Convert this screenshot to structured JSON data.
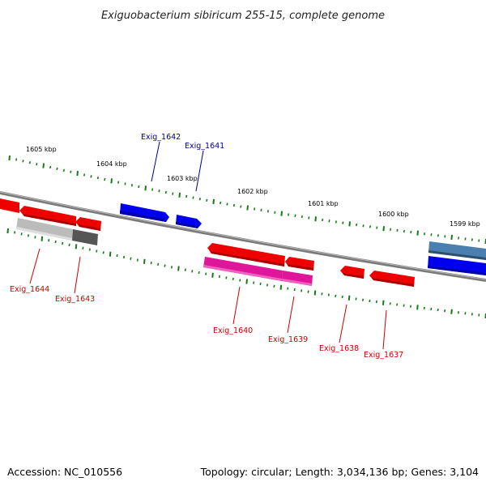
{
  "title": "Exiguobacterium sibiricum 255-15, complete genome",
  "footer": {
    "accession": "Accession: NC_010556",
    "summary": "Topology: circular; Length: 3,034,136 bp; Genes: 3,104"
  },
  "colors": {
    "forward_gene": "#0000ee",
    "forward_gene_alt": "#4a7fb0",
    "reverse_gene": "#ee0000",
    "pseudo_gene": "#bbbbbb",
    "pseudo_gene_dark": "#555555",
    "rna_gene": "#e0169a",
    "tick": "#1a7a1a",
    "backbone": "#7a7a7a",
    "label_forward": "#00008b",
    "label_reverse": "#cc0000"
  },
  "scale_labels": [
    "1605 kbp",
    "1604 kbp",
    "1603 kbp",
    "1602 kbp",
    "1601 kbp",
    "1600 kbp",
    "1599 kbp"
  ],
  "genes": [
    {
      "label": "Exig_1642",
      "strand": "forward"
    },
    {
      "label": "Exig_1641",
      "strand": "forward"
    },
    {
      "label": "Exig_1644",
      "strand": "reverse"
    },
    {
      "label": "Exig_1643",
      "strand": "reverse"
    },
    {
      "label": "Exig_1640",
      "strand": "reverse"
    },
    {
      "label": "Exig_1639",
      "strand": "reverse"
    },
    {
      "label": "Exig_1638",
      "strand": "reverse"
    },
    {
      "label": "Exig_1637",
      "strand": "reverse"
    }
  ]
}
